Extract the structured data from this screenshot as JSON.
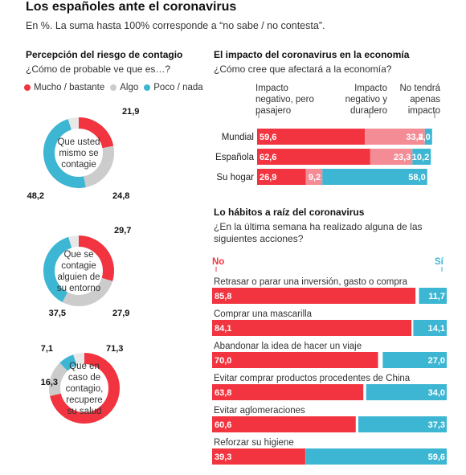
{
  "header": {
    "title": "Los españoles ante el coronavirus",
    "subtitle": "En %. La suma hasta 100% corresponde a “no sabe / no contesta”."
  },
  "colors": {
    "mucho": "#f1343f",
    "algo": "#cccccc",
    "poco": "#3cb6d2",
    "temporal": "#f48c96"
  },
  "risk": {
    "title": "Percepción del riesgo de contagio",
    "question": "¿Cómo de probable ve que es…?",
    "legend": [
      "Mucho / bastante",
      "Algo",
      "Poco / nada"
    ]
  },
  "economy": {
    "title": "El impacto del coronavirus en la economía",
    "question": "¿Cómo cree que afectará a la economía?",
    "columns": [
      "Impacto negativo, pero pasajero",
      "Impacto negativo y duradero",
      "No tendrá apenas impacto"
    ]
  },
  "habits": {
    "title": "Lo hábitos a raíz del coronavirus",
    "question": "¿En la última semana ha realizado alguna de las siguientes acciones?",
    "no_label": "No",
    "yes_label": "Sí"
  },
  "chart_data": [
    {
      "type": "pie",
      "variant": "donut",
      "center_label": "Que usted mismo se contagie",
      "categories": [
        "Mucho / bastante",
        "Algo",
        "Poco / nada"
      ],
      "values": [
        21.9,
        24.8,
        48.2
      ],
      "value_labels": [
        "21,9",
        "24,8",
        "48,2"
      ]
    },
    {
      "type": "pie",
      "variant": "donut",
      "center_label": "Que se contagie alguien de su entorno",
      "categories": [
        "Mucho / bastante",
        "Algo",
        "Poco / nada"
      ],
      "values": [
        29.7,
        27.9,
        37.5
      ],
      "value_labels": [
        "29,7",
        "27,9",
        "37,5"
      ]
    },
    {
      "type": "pie",
      "variant": "donut",
      "center_label": "Que en caso de contagio, recupere su salud",
      "categories": [
        "Mucho / bastante",
        "Algo",
        "Poco / nada"
      ],
      "values": [
        71.3,
        16.3,
        7.1
      ],
      "value_labels": [
        "71,3",
        "16,3",
        "7,1"
      ]
    },
    {
      "type": "bar",
      "orientation": "horizontal",
      "stacked": true,
      "categories": [
        "Mundial",
        "Española",
        "Su hogar"
      ],
      "series": [
        {
          "name": "Impacto negativo, pero pasajero",
          "values": [
            59.6,
            62.6,
            26.9
          ],
          "labels": [
            "59,6",
            "62,6",
            "26,9"
          ]
        },
        {
          "name": "Impacto negativo y duradero",
          "values": [
            33.2,
            23.3,
            9.2
          ],
          "labels": [
            "33,2",
            "23,3",
            "9,2"
          ]
        },
        {
          "name": "No tendrá apenas impacto",
          "values": [
            4.0,
            10.2,
            58.0
          ],
          "labels": [
            "4,0",
            "10,2",
            "58,0"
          ]
        }
      ]
    },
    {
      "type": "bar",
      "orientation": "horizontal",
      "categories": [
        "Retrasar o parar una inversión, gasto o compra",
        "Comprar una mascarilla",
        "Abandonar la idea de hacer un viaje",
        "Evitar comprar productos procedentes de China",
        "Evitar aglomeraciones",
        "Reforzar su higiene"
      ],
      "series": [
        {
          "name": "No",
          "values": [
            85.8,
            84.1,
            70.0,
            63.8,
            60.6,
            39.3
          ],
          "labels": [
            "85,8",
            "84,1",
            "70,0",
            "63,8",
            "60,6",
            "39,3"
          ]
        },
        {
          "name": "Sí",
          "values": [
            11.7,
            14.1,
            27.0,
            34.0,
            37.3,
            59.6
          ],
          "labels": [
            "11,7",
            "14,1",
            "27,0",
            "34,0",
            "37,3",
            "59,6"
          ]
        }
      ]
    }
  ]
}
